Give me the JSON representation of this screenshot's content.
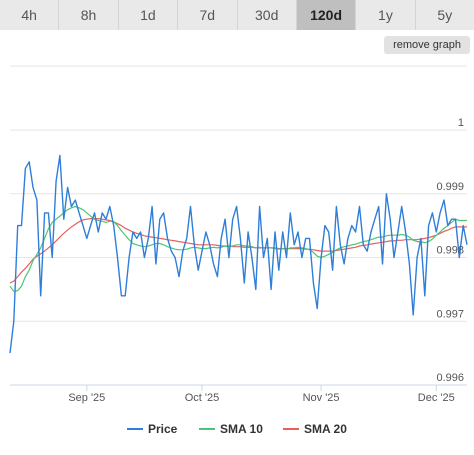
{
  "tabs": [
    {
      "label": "4h",
      "active": false
    },
    {
      "label": "8h",
      "active": false
    },
    {
      "label": "1d",
      "active": false
    },
    {
      "label": "7d",
      "active": false
    },
    {
      "label": "30d",
      "active": false
    },
    {
      "label": "120d",
      "active": true
    },
    {
      "label": "1y",
      "active": false
    },
    {
      "label": "5y",
      "active": false
    }
  ],
  "remove_graph_label": "remove graph",
  "chart_data": {
    "type": "line",
    "y_ticks": [
      1,
      0.999,
      0.998,
      0.997,
      0.996
    ],
    "y_tick_labels": [
      "1",
      "0.999",
      "0.998",
      "0.997",
      "0.996"
    ],
    "ylim": [
      0.996,
      1.0
    ],
    "xlim": [
      0,
      119
    ],
    "x_ticks": [
      {
        "label": "Sep '25",
        "day": 20
      },
      {
        "label": "Oct '25",
        "day": 50
      },
      {
        "label": "Nov '25",
        "day": 81
      },
      {
        "label": "Dec '25",
        "day": 111
      }
    ],
    "grid": true,
    "legend_position": "bottom",
    "series": [
      {
        "name": "Price",
        "color": "#2f7ed8",
        "values": [
          0.9965,
          0.997,
          0.9985,
          0.9985,
          0.9994,
          0.9995,
          0.9991,
          0.9989,
          0.9974,
          0.9987,
          0.9987,
          0.998,
          0.9992,
          0.9996,
          0.9986,
          0.9991,
          0.9988,
          0.9989,
          0.9987,
          0.9985,
          0.9983,
          0.9985,
          0.9987,
          0.9984,
          0.9987,
          0.9986,
          0.9988,
          0.9985,
          0.998,
          0.9974,
          0.9974,
          0.998,
          0.9984,
          0.9983,
          0.9984,
          0.998,
          0.9983,
          0.9988,
          0.9979,
          0.9986,
          0.9987,
          0.9983,
          0.9981,
          0.998,
          0.9977,
          0.9981,
          0.9983,
          0.9988,
          0.9982,
          0.9978,
          0.9981,
          0.9984,
          0.9982,
          0.9979,
          0.9977,
          0.9983,
          0.9986,
          0.998,
          0.9986,
          0.9988,
          0.9983,
          0.9976,
          0.9984,
          0.998,
          0.9975,
          0.9988,
          0.998,
          0.9983,
          0.9975,
          0.9984,
          0.9978,
          0.9984,
          0.998,
          0.9987,
          0.9982,
          0.9984,
          0.998,
          0.9983,
          0.9983,
          0.9976,
          0.9972,
          0.998,
          0.9985,
          0.9984,
          0.9978,
          0.9988,
          0.9982,
          0.9979,
          0.9983,
          0.9985,
          0.9984,
          0.9988,
          0.9982,
          0.9981,
          0.9984,
          0.9986,
          0.9988,
          0.9979,
          0.999,
          0.9986,
          0.998,
          0.9984,
          0.9988,
          0.9984,
          0.9979,
          0.9971,
          0.998,
          0.9983,
          0.9974,
          0.9985,
          0.9987,
          0.9984,
          0.9987,
          0.9989,
          0.9985,
          0.9986,
          0.9986,
          0.998,
          0.9985,
          0.9982
        ]
      },
      {
        "name": "SMA 10",
        "color": "#4cc674",
        "values": [
          0.99755,
          0.99747,
          0.99748,
          0.99755,
          0.9977,
          0.9978,
          0.99795,
          0.99805,
          0.99815,
          0.9983,
          0.99845,
          0.99855,
          0.9986,
          0.99865,
          0.9987,
          0.99875,
          0.99878,
          0.9988,
          0.99878,
          0.99875,
          0.9987,
          0.99865,
          0.9986,
          0.99858,
          0.99857,
          0.99855,
          0.99857,
          0.99856,
          0.9985,
          0.99842,
          0.99835,
          0.99828,
          0.99822,
          0.9982,
          0.99818,
          0.99817,
          0.99818,
          0.9982,
          0.99822,
          0.99822,
          0.9982,
          0.99817,
          0.99815,
          0.99813,
          0.99812,
          0.99812,
          0.99813,
          0.99815,
          0.99816,
          0.99815,
          0.99814,
          0.99814,
          0.99815,
          0.99816,
          0.99815,
          0.99816,
          0.99818,
          0.99817,
          0.99818,
          0.9982,
          0.9982,
          0.99818,
          0.99818,
          0.99817,
          0.99815,
          0.99816,
          0.99815,
          0.99816,
          0.99815,
          0.99814,
          0.99813,
          0.99814,
          0.99813,
          0.99815,
          0.99815,
          0.99816,
          0.99815,
          0.99814,
          0.99812,
          0.99808,
          0.99802,
          0.998,
          0.99802,
          0.99805,
          0.99808,
          0.99812,
          0.99815,
          0.99817,
          0.99818,
          0.9982,
          0.99821,
          0.99823,
          0.99825,
          0.99826,
          0.99828,
          0.9983,
          0.99832,
          0.99832,
          0.99834,
          0.99835,
          0.99835,
          0.99835,
          0.99836,
          0.99835,
          0.99832,
          0.99827,
          0.99825,
          0.99825,
          0.99823,
          0.99825,
          0.99829,
          0.99835,
          0.9984,
          0.99846,
          0.9985,
          0.99855,
          0.9986,
          0.99858,
          0.99858,
          0.99858
        ]
      },
      {
        "name": "SMA 20",
        "color": "#e8605a",
        "values": [
          0.9976,
          0.99763,
          0.9977,
          0.99777,
          0.99783,
          0.9979,
          0.99797,
          0.99802,
          0.99806,
          0.9981,
          0.99815,
          0.9982,
          0.99826,
          0.99832,
          0.99838,
          0.99843,
          0.99848,
          0.99852,
          0.99856,
          0.99859,
          0.9986,
          0.99861,
          0.99861,
          0.99861,
          0.9986,
          0.99859,
          0.99858,
          0.99856,
          0.99853,
          0.9985,
          0.99846,
          0.99843,
          0.9984,
          0.99838,
          0.99836,
          0.99834,
          0.99833,
          0.99832,
          0.99831,
          0.9983,
          0.99829,
          0.99828,
          0.99827,
          0.99826,
          0.99825,
          0.99824,
          0.99823,
          0.99822,
          0.99821,
          0.9982,
          0.9982,
          0.9982,
          0.9982,
          0.9982,
          0.99819,
          0.99818,
          0.99818,
          0.99818,
          0.99817,
          0.99817,
          0.99817,
          0.99816,
          0.99816,
          0.99816,
          0.99815,
          0.99815,
          0.99815,
          0.99815,
          0.99815,
          0.99815,
          0.99814,
          0.99814,
          0.99814,
          0.99814,
          0.99814,
          0.99814,
          0.99814,
          0.99813,
          0.99813,
          0.99812,
          0.99811,
          0.9981,
          0.9981,
          0.9981,
          0.9981,
          0.99811,
          0.99812,
          0.99813,
          0.99814,
          0.99815,
          0.99816,
          0.99818,
          0.99819,
          0.9982,
          0.99821,
          0.99822,
          0.99823,
          0.99824,
          0.99825,
          0.99826,
          0.99826,
          0.99827,
          0.99827,
          0.99828,
          0.99828,
          0.99828,
          0.99828,
          0.99829,
          0.9983,
          0.99831,
          0.99833,
          0.99835,
          0.99838,
          0.99841,
          0.99843,
          0.99846,
          0.99848,
          0.99848,
          0.99848,
          0.99848
        ]
      }
    ]
  }
}
